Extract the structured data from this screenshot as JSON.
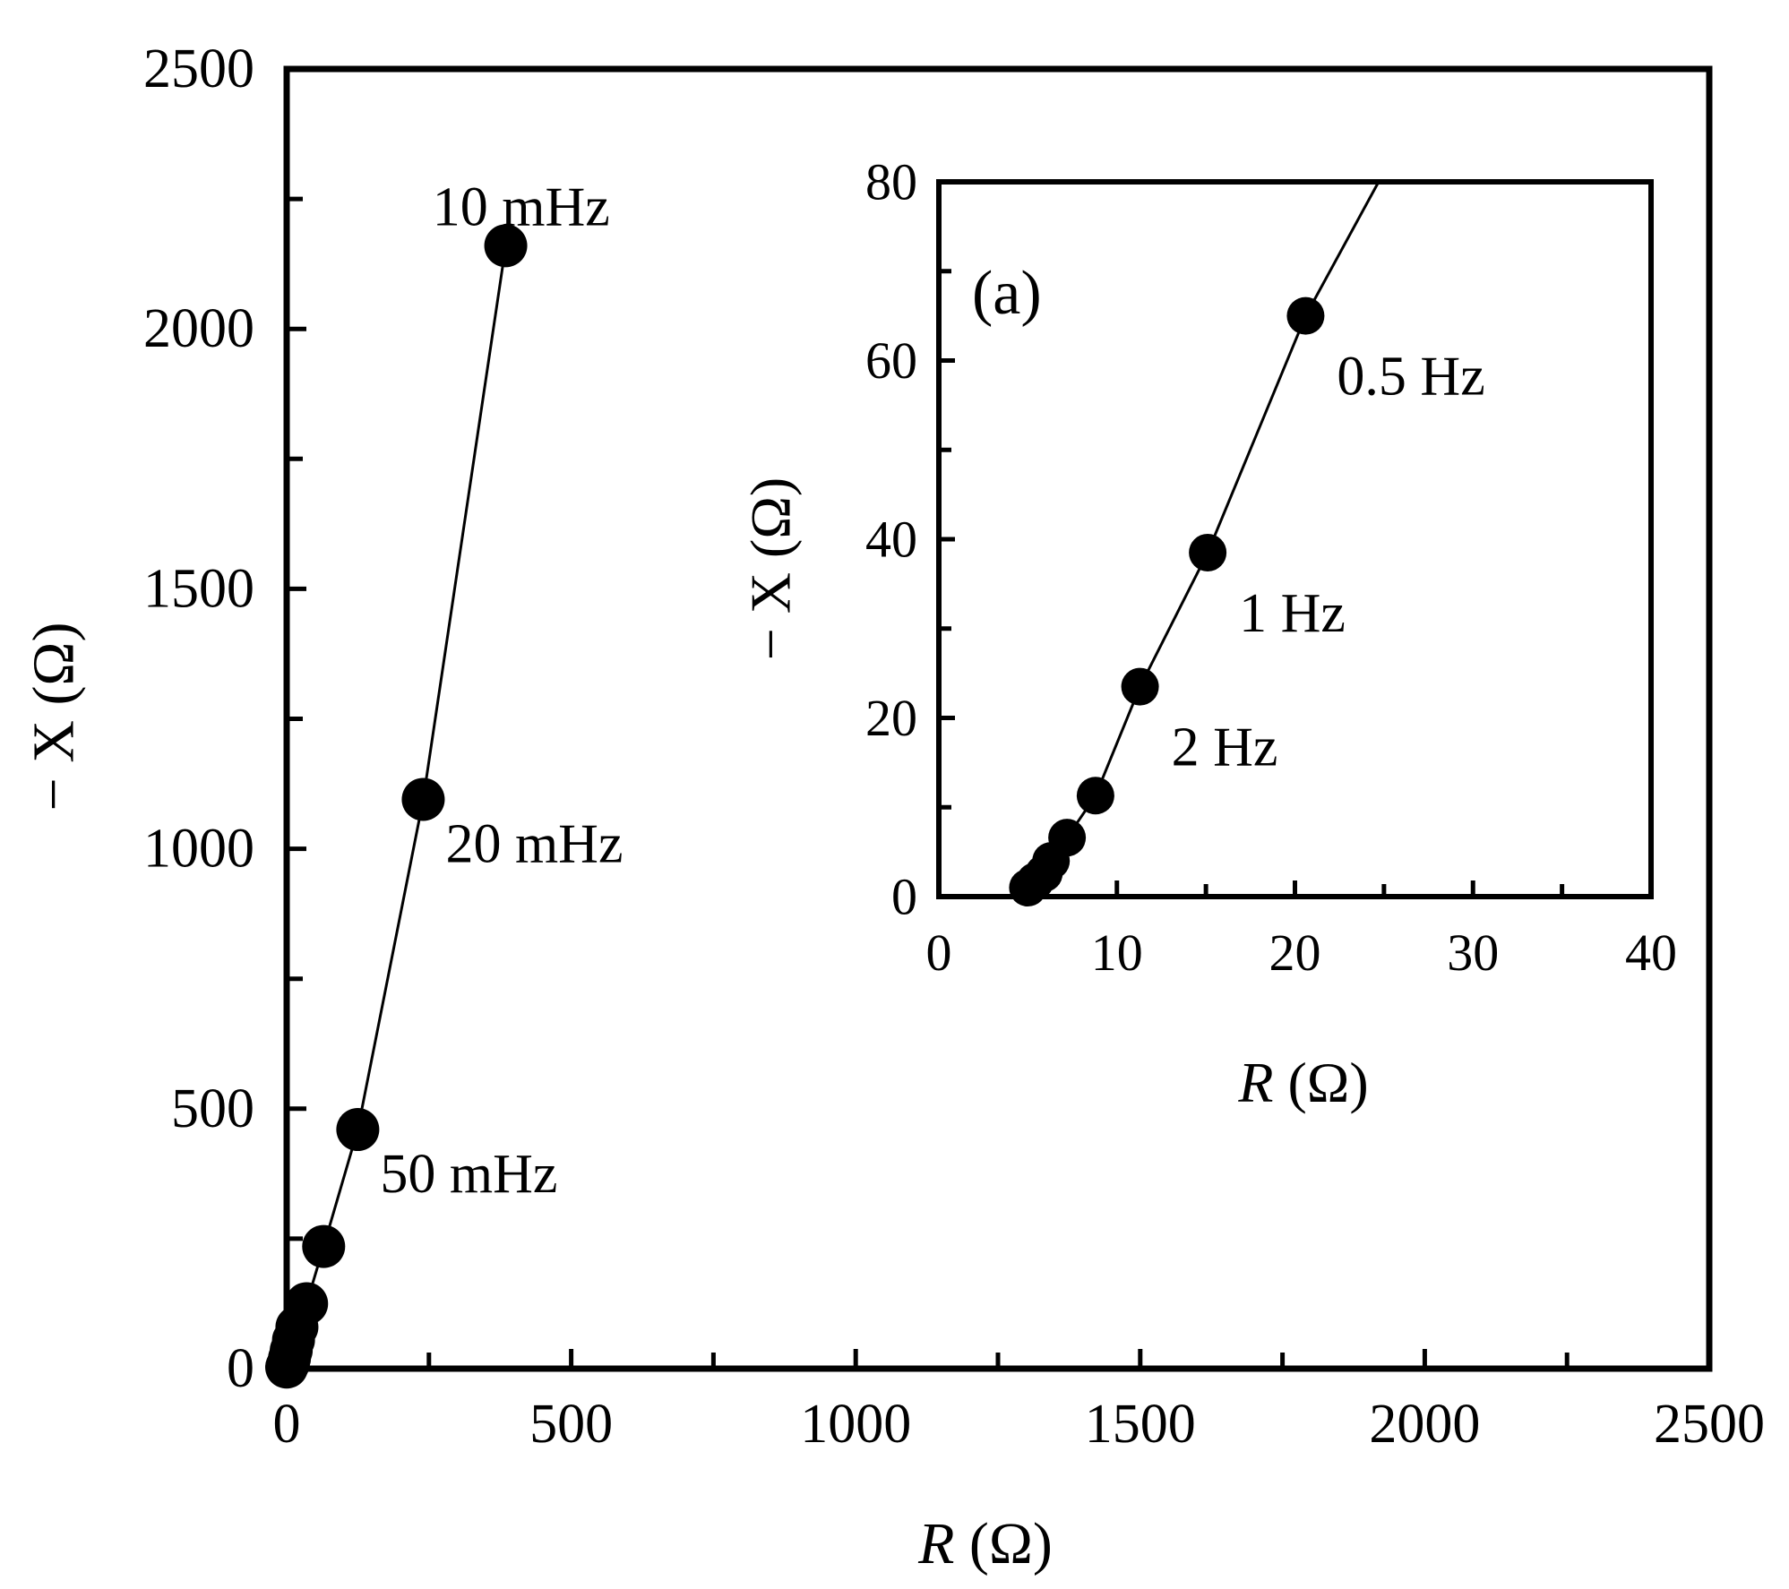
{
  "chart_data": [
    {
      "type": "scatter",
      "role": "main",
      "xlabel": {
        "var": "R",
        "unit": " (Ω)"
      },
      "ylabel": "− X (Ω)",
      "xlim": [
        0,
        2500
      ],
      "ylim": [
        0,
        2500
      ],
      "xticks": [
        0,
        500,
        1000,
        1500,
        2000,
        2500
      ],
      "yticks": [
        0,
        500,
        1000,
        1500,
        2000,
        2500
      ],
      "minor_tick_step": 250,
      "grid": false,
      "connected": true,
      "series": [
        {
          "x": [
            0,
            3,
            5,
            8,
            12,
            18,
            35,
            65,
            125,
            240,
            385
          ],
          "y": [
            3,
            10,
            20,
            35,
            55,
            80,
            125,
            235,
            460,
            1095,
            2160
          ]
        }
      ],
      "annotations": [
        {
          "text": "10 mHz",
          "x": 390,
          "y": 2160,
          "position": "above"
        },
        {
          "text": "20 mHz",
          "x": 240,
          "y": 1095,
          "position": "below-right"
        },
        {
          "text": "50 mHz",
          "x": 125,
          "y": 460,
          "position": "below-right"
        }
      ]
    },
    {
      "type": "scatter",
      "role": "inset",
      "panel_label": "(a)",
      "xlabel": {
        "var": "R",
        "unit": " (Ω)"
      },
      "ylabel": "− X (Ω)",
      "xlim": [
        0,
        40
      ],
      "ylim": [
        0,
        80
      ],
      "xticks": [
        0,
        10,
        20,
        30,
        40
      ],
      "yticks": [
        0,
        20,
        40,
        60,
        80
      ],
      "minor_xtick_step": 5,
      "minor_ytick_step": 10,
      "grid": false,
      "connected": true,
      "line_extends_to": {
        "x": 24.7,
        "y": 80
      },
      "series": [
        {
          "x": [
            5.0,
            5.4,
            5.9,
            6.3,
            7.2,
            8.8,
            11.3,
            15.1,
            20.6
          ],
          "y": [
            1.0,
            1.7,
            2.6,
            4.0,
            6.6,
            11.3,
            23.5,
            38.5,
            65.0
          ]
        }
      ],
      "annotations": [
        {
          "text": "0.5 Hz",
          "x": 20.6,
          "y": 65.0,
          "position": "below-right"
        },
        {
          "text": "1 Hz",
          "x": 15.1,
          "y": 38.5,
          "position": "below-right"
        },
        {
          "text": "2 Hz",
          "x": 11.3,
          "y": 23.5,
          "position": "below-right"
        }
      ]
    }
  ]
}
